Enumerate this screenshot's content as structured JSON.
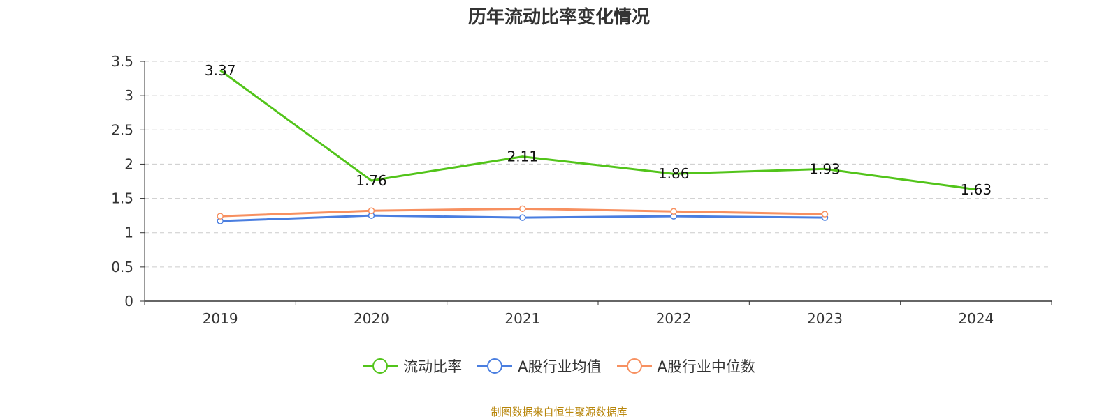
{
  "chart_data": {
    "type": "line",
    "title": "历年流动比率变化情况",
    "categories": [
      "2019",
      "2020",
      "2021",
      "2022",
      "2023",
      "2024"
    ],
    "ylim": [
      0,
      3.5
    ],
    "yticks": [
      "0",
      "0.5",
      "1",
      "1.5",
      "2",
      "2.5",
      "3",
      "3.5"
    ],
    "grid": true,
    "legend_position": "bottom",
    "series": [
      {
        "name": "流动比率",
        "color": "#52c41a",
        "values": [
          3.37,
          1.76,
          2.11,
          1.86,
          1.93,
          1.63
        ],
        "labels": [
          "3.37",
          "1.76",
          "2.11",
          "1.86",
          "1.93",
          "1.63"
        ],
        "show_labels": true
      },
      {
        "name": "A股行业均值",
        "color": "#4a7ee0",
        "values": [
          1.17,
          1.25,
          1.22,
          1.24,
          1.22,
          null
        ],
        "show_labels": false
      },
      {
        "name": "A股行业中位数",
        "color": "#f79060",
        "values": [
          1.24,
          1.32,
          1.35,
          1.31,
          1.27,
          null
        ],
        "show_labels": false
      }
    ]
  },
  "footer": "制图数据来自恒生聚源数据库"
}
